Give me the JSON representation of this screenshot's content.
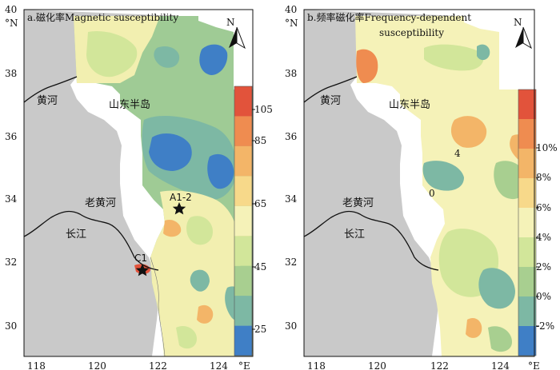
{
  "panel_a": {
    "title": "a.磁化率Magnetic susceptibility",
    "x_ticks": [
      "118",
      "120",
      "122",
      "124"
    ],
    "y_ticks": [
      "30",
      "32",
      "34",
      "36",
      "38",
      "40"
    ],
    "y_unit": "°N",
    "x_unit": "°E",
    "north": "N",
    "labels": {
      "huanghe": "黄河",
      "shandong": "山东半岛",
      "laohuanghe": "老黄河",
      "changjiang": "长江"
    },
    "stations": [
      {
        "name": "C1"
      },
      {
        "name": "A1-2"
      }
    ],
    "colorbar": {
      "tick_labels": [
        "25",
        "45",
        "65",
        "85",
        "105"
      ],
      "colors": [
        "#3f7fc6",
        "#7db8a4",
        "#a8cf90",
        "#d2e69a",
        "#f5f2b8",
        "#f7d98a",
        "#f3b568",
        "#ef8c50",
        "#e2533b"
      ]
    }
  },
  "panel_b": {
    "title_line1": "b.频率磁化率Frequency-dependent",
    "title_line2": "susceptibility",
    "x_ticks": [
      "118",
      "120",
      "122",
      "124"
    ],
    "y_ticks": [
      "30",
      "32",
      "34",
      "36",
      "38",
      "40"
    ],
    "y_unit": "°N",
    "x_unit": "°E",
    "north": "N",
    "labels": {
      "huanghe": "黄河",
      "shandong": "山东半岛",
      "laohuanghe": "老黄河",
      "changjiang": "长江"
    },
    "contour_labels": [
      "4",
      "0"
    ],
    "colorbar": {
      "tick_labels": [
        "-2%",
        "0%",
        "2%",
        "4%",
        "6%",
        "8%",
        "10%"
      ],
      "colors": [
        "#3f7fc6",
        "#7db8a4",
        "#a8cf90",
        "#d2e69a",
        "#f5f2b8",
        "#f7d98a",
        "#f3b568",
        "#ef8c50",
        "#e2533b"
      ]
    }
  }
}
